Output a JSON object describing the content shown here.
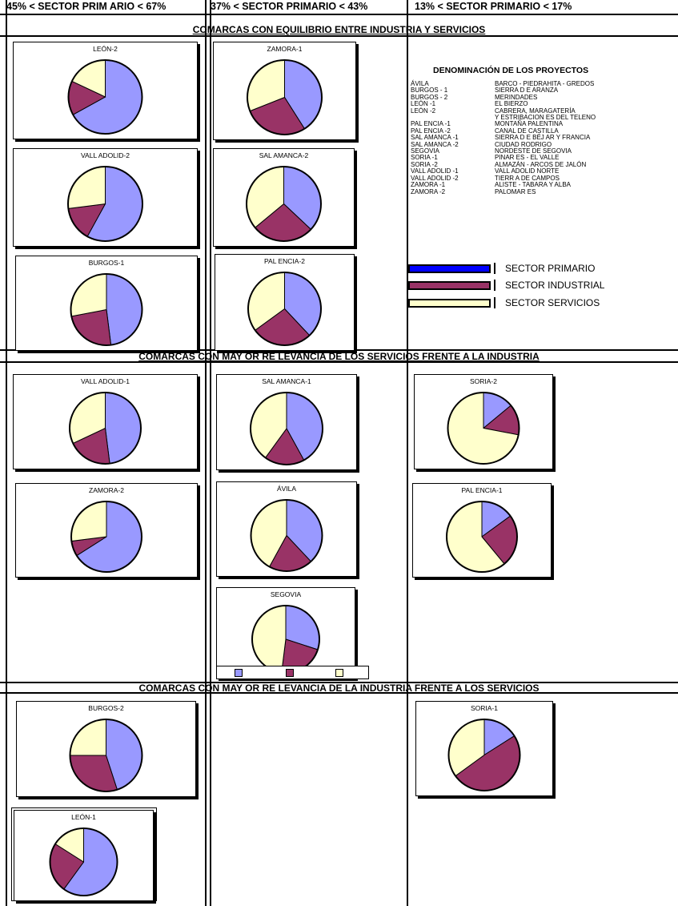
{
  "colors": {
    "primario": "#9999FF",
    "industrial": "#993366",
    "servicios": "#FFFFCC",
    "legend_primario": "#0000FF"
  },
  "headers": [
    "45% < SECTOR PRIM ARIO < 67%",
    "37% < SECTOR PRIMARIO < 43%",
    "13% < SECTOR PRIMARIO < 17%"
  ],
  "sections": [
    "COMARCAS CON EQUILIBRIO ENTRE INDUSTRIA Y SERVICIOS",
    "COMARCAS CON MAY OR RE LEVANCIA DE LOS SERVICIOS FRENTE A LA INDUSTRIA",
    "COMARCAS CON MAY OR RE LEVANCIA DE LA INDUSTRIA FRENTE A LOS SERVICIOS"
  ],
  "legend": {
    "title": "DENOMINACIÓN DE LOS PROYECTOS",
    "codes": [
      "ÁVILA",
      "BURGOS - 1",
      "BURGOS - 2",
      "LEÓN -1",
      "LEÓN -2",
      "",
      "PAL ENCIA -1",
      "PAL ENCIA -2",
      "SAL AMANCA -1",
      "SAL AMANCA -2",
      "SEGOVIA",
      "SORIA -1",
      "SORIA -2",
      "VALL ADOLID -1",
      "VALL ADOLID -2",
      "ZAMORA -1",
      "ZAMORA -2"
    ],
    "names": [
      "BARCO - PIEDRAHITA - GREDOS",
      "SIERRA D E ARANZA",
      "MERINDADES",
      "EL BIERZO",
      "CABRERA, MARAGATERÍA",
      "Y ESTRIBACION ES DEL TELENO",
      "MONTAÑA PALENTINA",
      "CANAL DE CASTILLA",
      "SIERRA D E BÉJ AR Y FRANCIA",
      "CIUDAD RODRIGO",
      "NORDESTE DE SEGOVIA",
      "PINAR ES - EL VALLE",
      "ALMAZÁN - ARCOS DE JALÓN",
      "VALL ADOLID NORTE",
      "TIERR A DE CAMPOS",
      "ALISTE - TABARA Y ALBA",
      "PALOMAR ES"
    ],
    "sectors": [
      "SECTOR PRIMARIO",
      "SECTOR INDUSTRIAL",
      "SECTOR SERVICIOS"
    ]
  },
  "chart_data": [
    {
      "type": "pie",
      "title": "LEÓN-2",
      "categories": [
        "Sector primario",
        "Sector industrial",
        "Sector servicios"
      ],
      "values": [
        67,
        15,
        18
      ]
    },
    {
      "type": "pie",
      "title": "VALL ADOLID-2",
      "categories": [
        "Sector primario",
        "Sector industrial",
        "Sector servicios"
      ],
      "values": [
        58,
        15,
        27
      ]
    },
    {
      "type": "pie",
      "title": "BURGOS-1",
      "categories": [
        "Sector primario",
        "Sector industrial",
        "Sector servicios"
      ],
      "values": [
        48,
        24,
        28
      ]
    },
    {
      "type": "pie",
      "title": "ZAMORA-1",
      "categories": [
        "Sector primario",
        "Sector industrial",
        "Sector servicios"
      ],
      "values": [
        41,
        28,
        31
      ]
    },
    {
      "type": "pie",
      "title": "SAL AMANCA-2",
      "categories": [
        "Sector primario",
        "Sector industrial",
        "Sector servicios"
      ],
      "values": [
        37,
        27,
        36
      ]
    },
    {
      "type": "pie",
      "title": "PAL ENCIA-2",
      "categories": [
        "Sector primario",
        "Sector industrial",
        "Sector servicios"
      ],
      "values": [
        38,
        27,
        35
      ]
    },
    {
      "type": "pie",
      "title": "VALL ADOLID-1",
      "categories": [
        "Sector primario",
        "Sector industrial",
        "Sector servicios"
      ],
      "values": [
        48,
        20,
        32
      ]
    },
    {
      "type": "pie",
      "title": "ZAMORA-2",
      "categories": [
        "Sector primario",
        "Sector industrial",
        "Sector servicios"
      ],
      "values": [
        66,
        7,
        27
      ]
    },
    {
      "type": "pie",
      "title": "SAL AMANCA-1",
      "categories": [
        "Sector primario",
        "Sector industrial",
        "Sector servicios"
      ],
      "values": [
        42,
        18,
        40
      ]
    },
    {
      "type": "pie",
      "title": "ÁVILA",
      "categories": [
        "Sector primario",
        "Sector industrial",
        "Sector servicios"
      ],
      "values": [
        38,
        20,
        42
      ]
    },
    {
      "type": "pie",
      "title": "SEGOVIA",
      "categories": [
        "Sector primario",
        "Sector industrial",
        "Sector servicios"
      ],
      "values": [
        30,
        22,
        48
      ]
    },
    {
      "type": "pie",
      "title": "SORIA-2",
      "categories": [
        "Sector primario",
        "Sector industrial",
        "Sector servicios"
      ],
      "values": [
        14,
        14,
        72
      ]
    },
    {
      "type": "pie",
      "title": "PAL ENCIA-1",
      "categories": [
        "Sector primario",
        "Sector industrial",
        "Sector servicios"
      ],
      "values": [
        15,
        24,
        61
      ]
    },
    {
      "type": "pie",
      "title": "BURGOS-2",
      "categories": [
        "Sector primario",
        "Sector industrial",
        "Sector servicios"
      ],
      "values": [
        45,
        30,
        25
      ]
    },
    {
      "type": "pie",
      "title": "SORIA-1",
      "categories": [
        "Sector primario",
        "Sector industrial",
        "Sector servicios"
      ],
      "values": [
        16,
        49,
        35
      ]
    },
    {
      "type": "pie",
      "title": "LEÓN-1",
      "categories": [
        "Sector primario",
        "Sector industrial",
        "Sector servicios"
      ],
      "values": [
        60,
        24,
        16
      ]
    }
  ]
}
